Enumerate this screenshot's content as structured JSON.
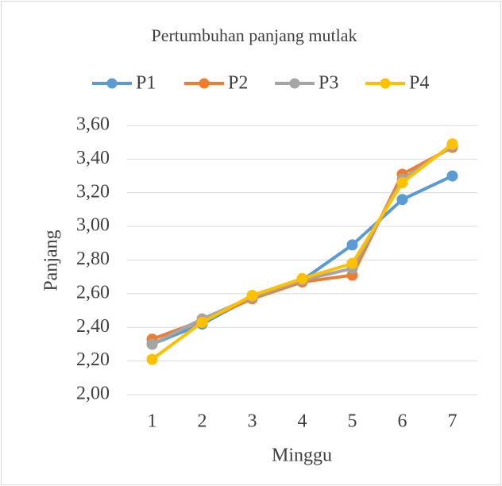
{
  "chart_data": {
    "type": "line",
    "title": "Pertumbuhan panjang mutlak",
    "x_label": "Minggu",
    "y_label": "Panjang",
    "categories": [
      "1",
      "2",
      "3",
      "4",
      "5",
      "6",
      "7"
    ],
    "series": [
      {
        "name": "P1",
        "color": "#5b9bd5",
        "values": [
          2.3,
          2.42,
          2.58,
          2.68,
          2.89,
          3.16,
          3.3
        ]
      },
      {
        "name": "P2",
        "color": "#ed7d31",
        "values": [
          2.33,
          2.44,
          2.57,
          2.67,
          2.71,
          3.31,
          3.47
        ]
      },
      {
        "name": "P3",
        "color": "#a5a5a5",
        "values": [
          2.3,
          2.45,
          2.58,
          2.68,
          2.75,
          3.28,
          3.48
        ]
      },
      {
        "name": "P4",
        "color": "#ffc000",
        "values": [
          2.21,
          2.43,
          2.59,
          2.69,
          2.78,
          3.26,
          3.49
        ]
      }
    ],
    "ylim": [
      2.0,
      3.6
    ],
    "yticks": [
      {
        "value": 2.0,
        "label": "2,00"
      },
      {
        "value": 2.2,
        "label": "2,20"
      },
      {
        "value": 2.4,
        "label": "2,40"
      },
      {
        "value": 2.6,
        "label": "2,60"
      },
      {
        "value": 2.8,
        "label": "2,80"
      },
      {
        "value": 3.0,
        "label": "3,00"
      },
      {
        "value": 3.2,
        "label": "3,20"
      },
      {
        "value": 3.4,
        "label": "3,40"
      },
      {
        "value": 3.6,
        "label": "3,60"
      }
    ],
    "grid": true,
    "legend": "top"
  }
}
